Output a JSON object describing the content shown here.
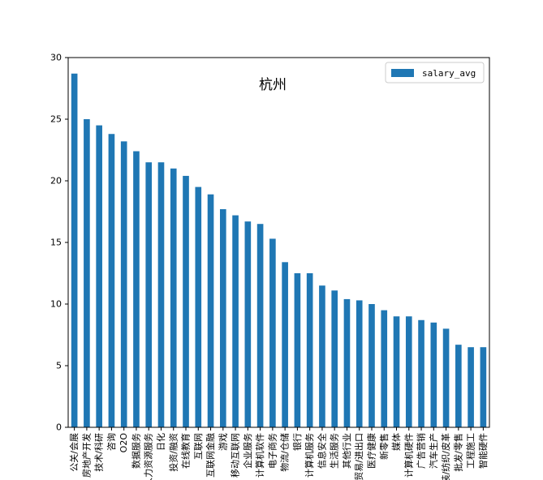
{
  "chart_data": {
    "type": "bar",
    "title": "杭州",
    "xlabel": "",
    "ylabel": "",
    "ylim": [
      0,
      30
    ],
    "yticks": [
      0,
      5,
      10,
      15,
      20,
      25,
      30
    ],
    "legend": "top-right",
    "grid": false,
    "bar_color": "#1f77b4",
    "categories": [
      "公关/会展",
      "房地产开发",
      "技术/科研",
      "咨询",
      "O2O",
      "数据服务",
      "人力资源服务",
      "日化",
      "投资/融资",
      "在线教育",
      "互联网",
      "互联网金融",
      "游戏",
      "移动互联网",
      "企业服务",
      "计算机软件",
      "电子商务",
      "物流/仓储",
      "银行",
      "计算机服务",
      "信息安全",
      "生活服务",
      "其他行业",
      "贸易/进出口",
      "医疗健康",
      "新零售",
      "媒体",
      "计算机硬件",
      "广告营销",
      "汽车生产",
      "服装/纺织/皮革",
      "批发/零售",
      "工程施工",
      "智能硬件"
    ],
    "series": [
      {
        "name": "salary_avg",
        "values": [
          28.7,
          25.0,
          24.5,
          23.8,
          23.2,
          22.4,
          21.5,
          21.5,
          21.0,
          20.4,
          19.5,
          18.9,
          17.7,
          17.2,
          16.7,
          16.5,
          15.3,
          13.4,
          12.5,
          12.5,
          11.5,
          11.1,
          10.4,
          10.3,
          10.0,
          9.5,
          9.0,
          9.0,
          8.7,
          8.5,
          8.0,
          6.7,
          6.5,
          6.5
        ]
      }
    ]
  }
}
